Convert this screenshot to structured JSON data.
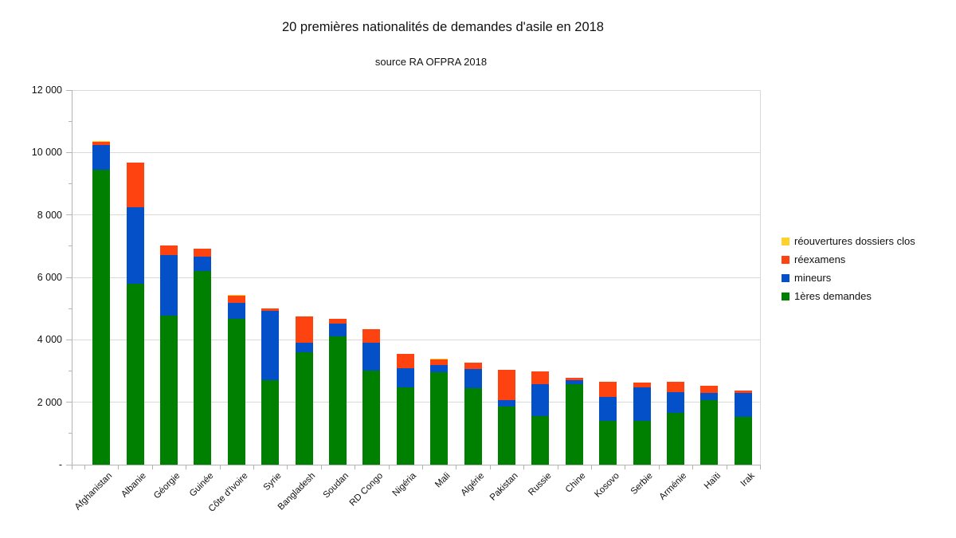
{
  "chart_data": {
    "type": "bar",
    "stacked": true,
    "title": "20 premières nationalités de demandes d'asile en 2018",
    "subtitle": "source RA OFPRA 2018",
    "categories": [
      "Afghanistan",
      "Albanie",
      "Géorgie",
      "Guinée",
      "Côte d'Ivoire",
      "Syrie",
      "Bangladesh",
      "Soudan",
      "RD Congo",
      "Nigéria",
      "Mali",
      "Algérie",
      "Pakistan",
      "Russie",
      "Chine",
      "Kosovo",
      "Serbie",
      "Arménie",
      "Haïti",
      "Irak"
    ],
    "series": [
      {
        "name": "1ères demandes",
        "color_key": "green",
        "values": [
          9450,
          5785,
          4785,
          6215,
          4680,
          2700,
          3600,
          4120,
          3020,
          2465,
          2960,
          2440,
          1865,
          1565,
          2590,
          1400,
          1400,
          1655,
          2060,
          1540
        ]
      },
      {
        "name": "mineurs",
        "color_key": "blue",
        "values": [
          780,
          2465,
          1935,
          460,
          500,
          2230,
          295,
          390,
          895,
          620,
          230,
          625,
          215,
          1025,
          120,
          760,
          1065,
          680,
          250,
          765
        ]
      },
      {
        "name": "réexamens",
        "color_key": "orange",
        "values": [
          100,
          1435,
          290,
          235,
          245,
          70,
          855,
          155,
          430,
          465,
          195,
          215,
          960,
          385,
          80,
          500,
          165,
          315,
          225,
          60
        ]
      },
      {
        "name": "réouvertures dossiers clos",
        "color_key": "yellow",
        "values": [
          40,
          0,
          0,
          0,
          25,
          0,
          0,
          0,
          0,
          0,
          15,
          0,
          0,
          0,
          0,
          0,
          0,
          0,
          0,
          0
        ]
      }
    ],
    "ylim": [
      0,
      12000
    ],
    "ytick_step": 2000,
    "y_tick_labels": [
      "-",
      "2 000",
      "4 000",
      "6 000",
      "8 000",
      "10 000",
      "12 000"
    ],
    "grid": true,
    "legend_position": "right"
  },
  "legend": {
    "items": [
      {
        "label": "réouvertures dossiers clos",
        "color_key": "yellow"
      },
      {
        "label": "réexamens",
        "color_key": "orange"
      },
      {
        "label": "mineurs",
        "color_key": "blue"
      },
      {
        "label": "1ères demandes",
        "color_key": "green"
      }
    ]
  },
  "colors": {
    "green": "#008000",
    "blue": "#0450C8",
    "orange": "#FF4310",
    "yellow": "#FFD22B",
    "gridline": "#d9d9d9",
    "axis": "#b3b3b3"
  }
}
